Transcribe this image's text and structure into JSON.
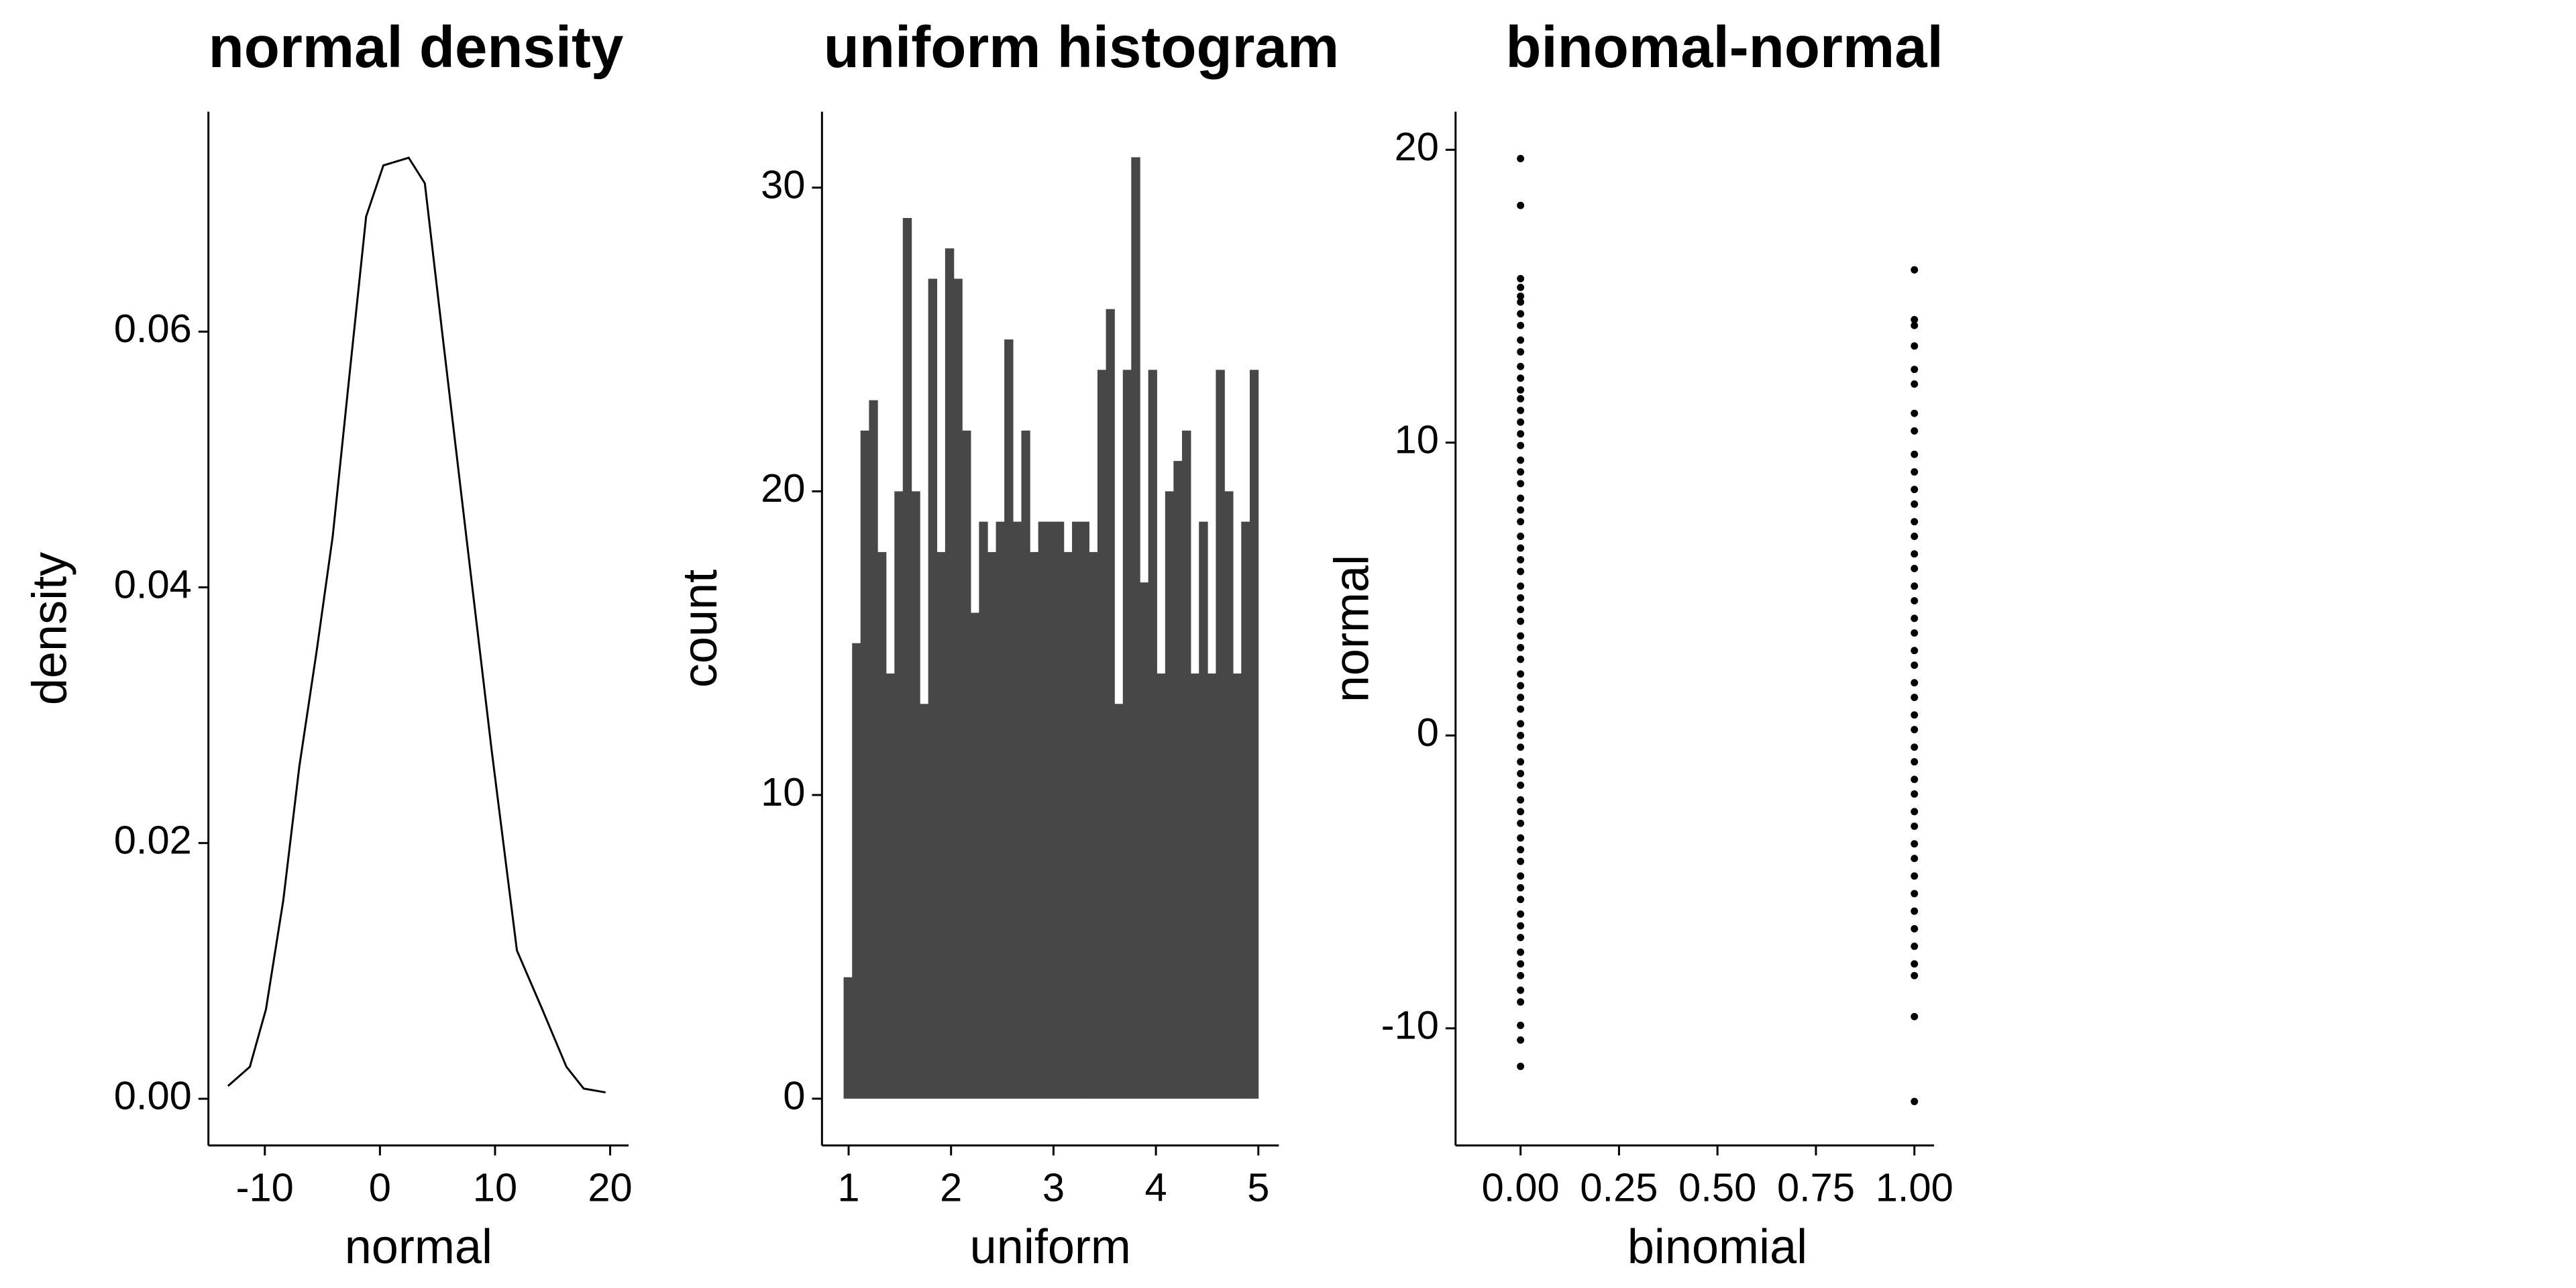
{
  "chart_data": [
    {
      "type": "line",
      "title": "normal density",
      "x_label": "normal",
      "y_label": "density",
      "color": "#000000",
      "x": [
        -13.2,
        -11.3,
        -9.9,
        -8.4,
        -7.0,
        -5.5,
        -4.1,
        -2.6,
        -1.2,
        0.3,
        2.5,
        3.9,
        5.4,
        7.5,
        9.7,
        11.9,
        14.1,
        16.2,
        17.7,
        19.6
      ],
      "y": [
        0.001,
        0.0025,
        0.007,
        0.0155,
        0.026,
        0.035,
        0.044,
        0.057,
        0.069,
        0.073,
        0.0736,
        0.0716,
        0.06,
        0.044,
        0.0273,
        0.0116,
        0.007,
        0.0025,
        0.0008,
        0.0005
      ],
      "xlim": [
        -14.9,
        21.6
      ],
      "ylim": [
        -0.00365,
        0.0772
      ],
      "xticks": [
        -10,
        0,
        10,
        20
      ],
      "yticks": [
        {
          "value": 0,
          "label": "0.00"
        },
        {
          "value": 0.02,
          "label": "0.02"
        },
        {
          "value": 0.04,
          "label": "0.04"
        },
        {
          "value": 0.06,
          "label": "0.06"
        }
      ]
    },
    {
      "type": "histogram",
      "title": "uniform histogram",
      "x_label": "uniform",
      "y_label": "count",
      "color": "#474747",
      "bins": [
        0.951,
        1.034,
        1.116,
        1.199,
        1.281,
        1.364,
        1.447,
        1.529,
        1.612,
        1.694,
        1.777,
        1.86,
        1.942,
        2.025,
        2.107,
        2.19,
        2.273,
        2.355,
        2.438,
        2.52,
        2.603,
        2.686,
        2.768,
        2.851,
        2.933,
        3.016,
        3.099,
        3.181,
        3.264,
        3.346,
        3.429,
        3.512,
        3.594,
        3.677,
        3.759,
        3.842,
        3.925,
        4.007,
        4.09,
        4.172,
        4.255,
        4.338,
        4.42,
        4.503,
        4.585,
        4.668,
        4.751,
        4.833,
        4.916,
        4.998
      ],
      "values": [
        4,
        15,
        22,
        23,
        18,
        14,
        20,
        29,
        20,
        13,
        27,
        18,
        28,
        27,
        22,
        16,
        19,
        18,
        19,
        25,
        19,
        22,
        18,
        19,
        19,
        19,
        18,
        19,
        19,
        18,
        24,
        26,
        13,
        24,
        31,
        17,
        24,
        14,
        20,
        21,
        22,
        14,
        19,
        14,
        24,
        20,
        14,
        19,
        24
      ],
      "xlim": [
        0.74,
        5.2
      ],
      "ylim": [
        -1.54,
        32.5
      ],
      "xticks": [
        1,
        2,
        3,
        4,
        5
      ],
      "yticks": [
        0,
        10,
        20,
        30
      ]
    },
    {
      "type": "scatter",
      "title": "binomal-normal",
      "x_label": "binomial",
      "y_label": "normal",
      "color": "#000000",
      "x": [
        0,
        0,
        0,
        0,
        0,
        0,
        0,
        0,
        0,
        0,
        0,
        0,
        0,
        0,
        0,
        0,
        0,
        0,
        0,
        0,
        0,
        0,
        0,
        0,
        0,
        0,
        0,
        0,
        0,
        0,
        0,
        0,
        0,
        0,
        0,
        0,
        0,
        0,
        0,
        0,
        0,
        0,
        0,
        0,
        0,
        0,
        0,
        0,
        0,
        0,
        0,
        0,
        0,
        0,
        0,
        0,
        0,
        0,
        0,
        0,
        0,
        0,
        0,
        0,
        0,
        1,
        1,
        1,
        1,
        1,
        1,
        1,
        1,
        1,
        1,
        1,
        1,
        1,
        1,
        1,
        1,
        1,
        1,
        1,
        1,
        1,
        1,
        1,
        1,
        1,
        1,
        1,
        1,
        1,
        1,
        1,
        1,
        1,
        1,
        1,
        1,
        1,
        1,
        1,
        1,
        1,
        1,
        1
      ],
      "y": [
        19.7,
        18.1,
        15.6,
        15.3,
        15.0,
        14.8,
        14.4,
        14.0,
        13.5,
        13.1,
        12.6,
        12.2,
        11.8,
        11.5,
        11.1,
        10.7,
        10.3,
        9.9,
        9.4,
        9.0,
        8.6,
        8.1,
        7.7,
        7.3,
        6.8,
        6.4,
        6.0,
        5.6,
        5.1,
        4.7,
        4.3,
        3.9,
        3.4,
        3.0,
        2.6,
        2.1,
        1.7,
        1.3,
        0.9,
        0.4,
        0.0,
        -0.4,
        -0.9,
        -1.3,
        -1.7,
        -2.2,
        -2.6,
        -3.0,
        -3.5,
        -3.9,
        -4.3,
        -4.8,
        -5.2,
        -5.6,
        -6.1,
        -6.5,
        -6.9,
        -7.4,
        -7.8,
        -8.2,
        -8.7,
        -9.1,
        -9.9,
        -10.4,
        -11.3,
        15.9,
        14.2,
        14.0,
        13.3,
        12.5,
        12.0,
        11.0,
        10.4,
        9.6,
        9.0,
        8.4,
        7.9,
        7.3,
        6.8,
        6.2,
        5.7,
        5.1,
        4.6,
        4.0,
        3.5,
        2.9,
        2.4,
        1.8,
        1.3,
        0.7,
        0.2,
        -0.4,
        -0.9,
        -1.5,
        -2.0,
        -2.6,
        -3.1,
        -3.7,
        -4.2,
        -4.8,
        -5.4,
        -6.0,
        -6.6,
        -7.2,
        -7.8,
        -8.2,
        -9.6,
        -12.5
      ],
      "xlim": [
        -0.165,
        1.05
      ],
      "ylim": [
        -14.0,
        21.3
      ],
      "xticks": [
        {
          "value": 0,
          "label": "0.00"
        },
        {
          "value": 0.25,
          "label": "0.25"
        },
        {
          "value": 0.5,
          "label": "0.50"
        },
        {
          "value": 0.75,
          "label": "0.75"
        },
        {
          "value": 1,
          "label": "1.00"
        }
      ],
      "yticks": [
        -10,
        0,
        10,
        20
      ]
    }
  ]
}
